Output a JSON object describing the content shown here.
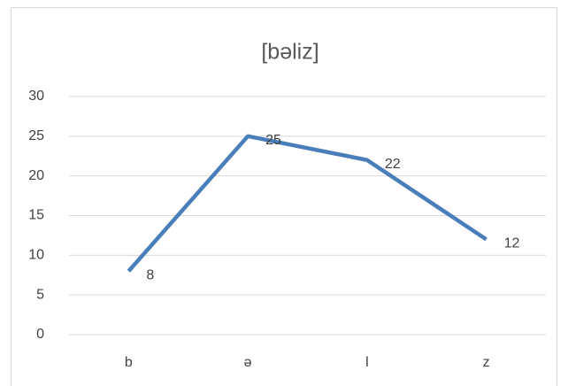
{
  "chart_data": {
    "type": "line",
    "title": "[bəliz]",
    "categories": [
      "b",
      "ə",
      "l",
      "z"
    ],
    "values": [
      8,
      25,
      22,
      12
    ],
    "color": "#4a7ebb",
    "ylim": [
      0,
      30
    ],
    "yticks": [
      0,
      5,
      10,
      15,
      20,
      25,
      30
    ],
    "grid": true,
    "data_labels": true
  }
}
